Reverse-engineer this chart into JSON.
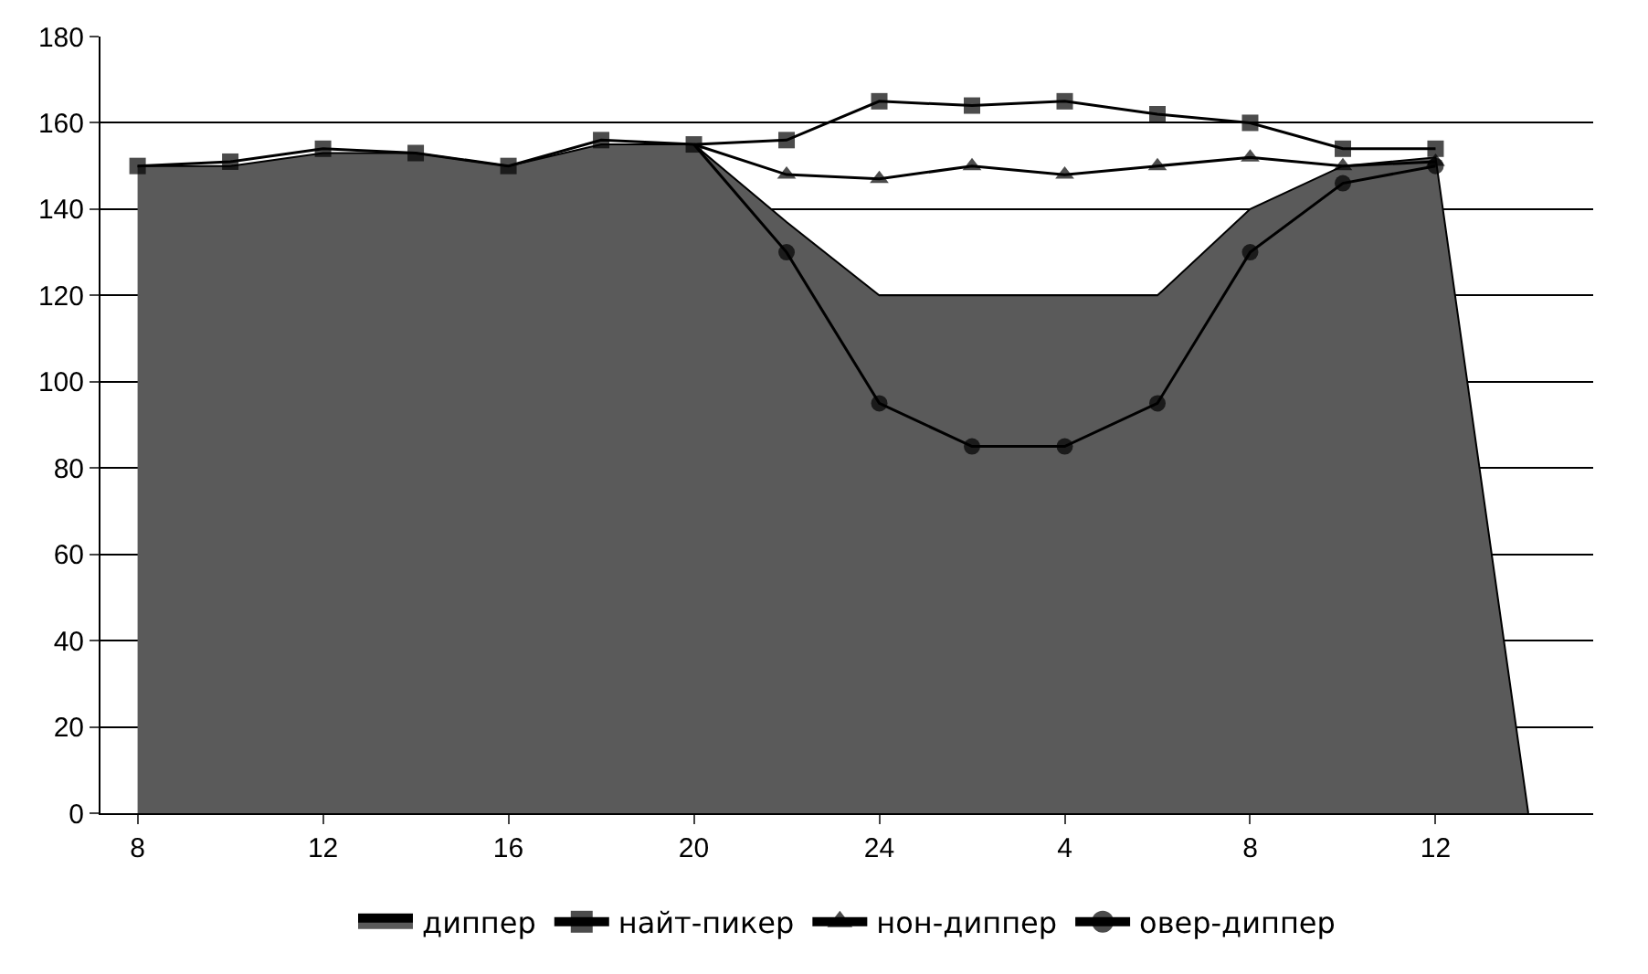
{
  "chart_data": {
    "type": "line",
    "categories": [
      "8",
      null,
      "12",
      null,
      "16",
      null,
      "20",
      null,
      "24",
      null,
      "4",
      null,
      "8",
      null,
      "12",
      null
    ],
    "ylim": [
      0,
      180
    ],
    "yticks": [
      0,
      20,
      40,
      60,
      80,
      100,
      120,
      140,
      160,
      180
    ],
    "grid": "y",
    "legend": "bottom",
    "series": [
      {
        "name": "диппер",
        "type": "area",
        "color": "#5a5a5a",
        "marker": "none",
        "values": [
          150,
          150,
          153,
          153,
          150,
          155,
          155,
          137,
          120,
          120,
          120,
          120,
          140,
          150,
          152,
          0
        ]
      },
      {
        "name": "найт-пикер",
        "color": "#000000",
        "marker": "square",
        "values": [
          150,
          151,
          154,
          153,
          150,
          156,
          155,
          156,
          165,
          164,
          165,
          162,
          160,
          154,
          154,
          null
        ]
      },
      {
        "name": "нон-диппер",
        "color": "#000000",
        "marker": "triangle",
        "values": [
          null,
          null,
          null,
          null,
          null,
          null,
          155,
          148,
          147,
          150,
          148,
          150,
          152,
          150,
          151,
          null
        ]
      },
      {
        "name": "овер-диппер",
        "color": "#000000",
        "marker": "circle",
        "values": [
          null,
          null,
          null,
          null,
          null,
          null,
          155,
          130,
          95,
          85,
          85,
          95,
          130,
          146,
          150,
          null
        ]
      }
    ]
  }
}
